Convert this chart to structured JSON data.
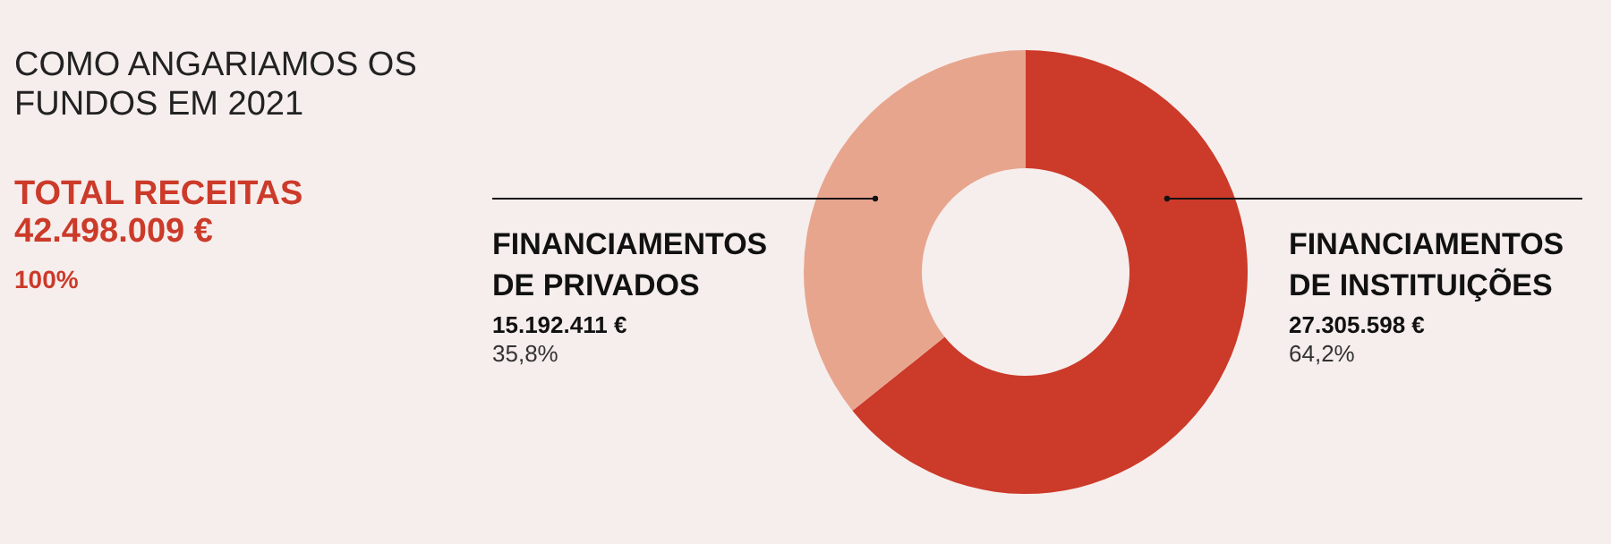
{
  "chart_data": {
    "type": "donut",
    "title": "COMO ANGARIAMOS OS\nFUNDOS EM 2021",
    "subtitle": "TOTAL RECEITAS\n42.498.009 €",
    "categories": [
      "FINANCIAMENTOS\nDE INSTITUIÇÕES",
      "FINANCIAMENTOS\nDE PRIVADOS"
    ],
    "values": [
      27305598,
      15192411
    ],
    "colors": [
      "#cc3a2a",
      "#e8a58e"
    ],
    "value_labels": [
      "27.305.598 €",
      "15.192.411 €"
    ],
    "annotations": [
      "100%",
      "64,2%",
      "35,8%"
    ]
  }
}
